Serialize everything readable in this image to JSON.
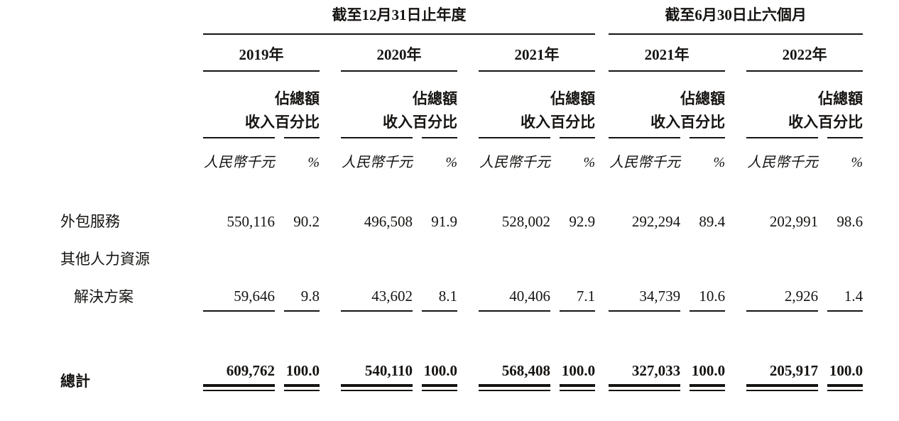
{
  "document": {
    "period_groups": [
      {
        "title": "截至12月31日止年度"
      },
      {
        "title": "截至6月30日止六個月"
      }
    ],
    "years": [
      "2019年",
      "2020年",
      "2021年",
      "2021年",
      "2022年"
    ],
    "column_headers": {
      "share_of_total": "佔總額",
      "revenue": "收入",
      "percentage": "百分比"
    },
    "units": {
      "revenue": "人民幣千元",
      "percentage": "%"
    },
    "rows": [
      {
        "label": "外包服務",
        "cells": [
          "550,116",
          "90.2",
          "496,508",
          "91.9",
          "528,002",
          "92.9",
          "292,294",
          "89.4",
          "202,991",
          "98.6"
        ]
      },
      {
        "label_line1": "其他人力資源",
        "label_line2": "解決方案",
        "cells": [
          "59,646",
          "9.8",
          "43,602",
          "8.1",
          "40,406",
          "7.1",
          "34,739",
          "10.6",
          "2,926",
          "1.4"
        ]
      }
    ],
    "total": {
      "label": "總計",
      "cells": [
        "609,762",
        "100.0",
        "540,110",
        "100.0",
        "568,408",
        "100.0",
        "327,033",
        "100.0",
        "205,917",
        "100.0"
      ]
    }
  }
}
